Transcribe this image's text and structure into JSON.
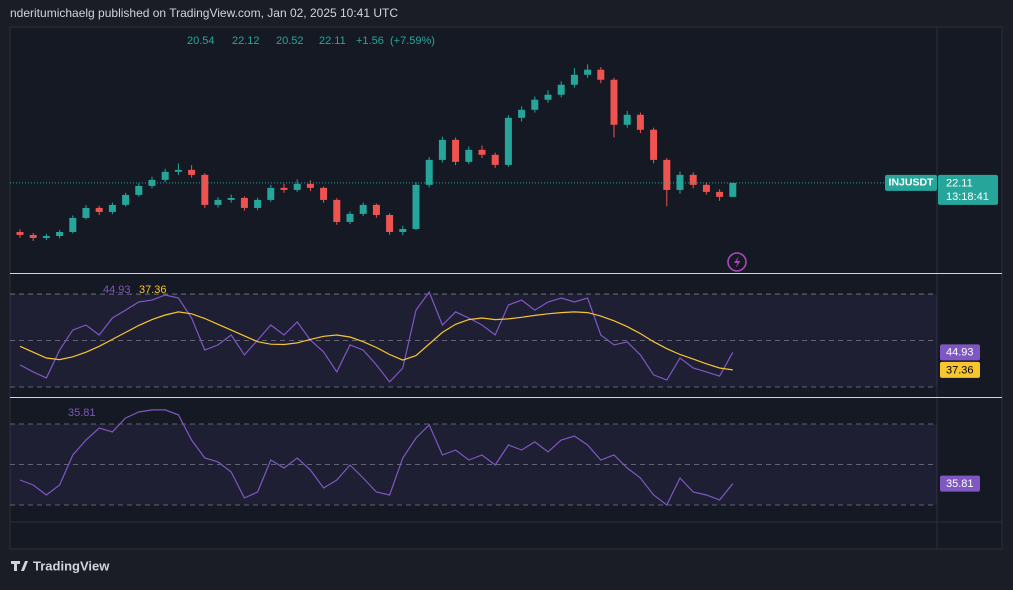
{
  "header": {
    "text": "nderitumichaelg published on TradingView.com, Jan 02, 2025 10:41 UTC"
  },
  "footer": {
    "brand": "TradingView"
  },
  "chart_data": [
    {
      "type": "candlestick",
      "symbol": "INJUSDT",
      "countdown": "13:18:41",
      "change": {
        "value": 1.56,
        "label": "+1.56"
      },
      "change_percent": {
        "value": 7.59,
        "label": "(+7.59%)"
      },
      "up_color": "#26a69a",
      "down_color": "#ef5350",
      "ylim": [
        12,
        39.6
      ],
      "open": [
        16.6,
        16.27,
        15.93,
        16.15,
        16.6,
        18.18,
        19.3,
        18.85,
        19.64,
        20.76,
        21.77,
        22.45,
        23.35,
        23.57,
        23.01,
        19.64,
        20.2,
        20.42,
        19.3,
        20.2,
        21.55,
        21.32,
        22.0,
        21.55,
        20.2,
        17.73,
        18.63,
        19.64,
        18.51,
        16.6,
        16.94,
        21.89,
        24.69,
        26.94,
        24.47,
        25.82,
        25.26,
        24.13,
        29.41,
        30.31,
        31.44,
        32.0,
        33.12,
        34.24,
        34.81,
        33.68,
        28.63,
        29.75,
        28.07,
        24.69,
        21.32,
        23.01,
        21.89,
        21.1,
        20.54
      ],
      "high": [
        16.9,
        16.5,
        16.4,
        16.85,
        18.45,
        19.6,
        19.55,
        19.9,
        21.0,
        22.05,
        22.8,
        23.7,
        24.3,
        24.1,
        23.2,
        20.5,
        20.8,
        20.6,
        20.45,
        21.9,
        22.0,
        22.5,
        22.4,
        21.7,
        20.4,
        18.9,
        19.9,
        19.8,
        18.7,
        17.3,
        22.2,
        25.0,
        27.3,
        27.2,
        26.2,
        26.3,
        25.5,
        29.7,
        30.7,
        31.8,
        32.5,
        33.5,
        35.0,
        35.4,
        35.1,
        33.9,
        30.2,
        30.0,
        28.3,
        24.9,
        23.4,
        23.3,
        22.2,
        21.4,
        22.12
      ],
      "low": [
        15.95,
        15.6,
        15.7,
        15.9,
        16.45,
        18.0,
        18.5,
        18.6,
        19.45,
        20.55,
        21.5,
        22.2,
        23.0,
        22.7,
        19.3,
        19.35,
        19.9,
        19.0,
        19.05,
        20.0,
        21.0,
        21.1,
        21.2,
        19.9,
        17.4,
        17.5,
        18.4,
        18.2,
        16.3,
        16.25,
        16.8,
        21.6,
        24.4,
        24.1,
        24.2,
        24.9,
        23.8,
        23.9,
        29.0,
        30.0,
        31.1,
        31.7,
        32.8,
        33.9,
        33.3,
        27.2,
        28.3,
        27.7,
        24.3,
        19.5,
        20.9,
        21.5,
        20.8,
        20.1,
        20.52
      ],
      "close": [
        16.27,
        15.93,
        16.15,
        16.6,
        18.18,
        19.3,
        18.85,
        19.64,
        20.76,
        21.77,
        22.45,
        23.35,
        23.57,
        23.01,
        19.64,
        20.2,
        20.42,
        19.3,
        20.2,
        21.55,
        21.32,
        22.0,
        21.55,
        20.2,
        17.73,
        18.63,
        19.64,
        18.51,
        16.6,
        16.94,
        21.89,
        24.69,
        26.94,
        24.47,
        25.82,
        25.26,
        24.13,
        29.41,
        30.31,
        31.44,
        32.0,
        33.12,
        34.24,
        34.81,
        33.68,
        28.63,
        29.75,
        28.07,
        24.69,
        21.32,
        23.01,
        21.89,
        21.1,
        20.54,
        22.11
      ]
    },
    {
      "type": "line",
      "ylim": [
        25.7,
        78.2
      ],
      "levels": [
        30,
        50,
        70
      ],
      "series": [
        {
          "color": "#7e57c2",
          "values": [
            39.5,
            36.5,
            33.9,
            45.9,
            54.5,
            56.7,
            52.4,
            59.7,
            63.1,
            66.6,
            67.4,
            69.6,
            68.3,
            59.7,
            45.9,
            48.1,
            52.4,
            43.8,
            50.2,
            56.7,
            52.4,
            58.0,
            50.2,
            45.1,
            36.5,
            48.1,
            45.9,
            39.5,
            32.2,
            38.2,
            63.1,
            70.9,
            56.7,
            62.3,
            59.7,
            56.7,
            52.4,
            65.3,
            67.4,
            63.1,
            66.6,
            68.3,
            66.6,
            68.3,
            52.4,
            48.1,
            49.4,
            43.8,
            35.2,
            33.0,
            42.5,
            38.2,
            36.5,
            34.7,
            44.93
          ]
        },
        {
          "color": "#f7c530",
          "values": [
            47.5,
            45.0,
            42.5,
            41.8,
            43.0,
            45.0,
            47.5,
            50.5,
            53.5,
            56.5,
            59.0,
            61.0,
            62.3,
            61.5,
            59.5,
            57.0,
            54.5,
            52.0,
            49.5,
            48.4,
            48.3,
            49.0,
            50.5,
            51.8,
            52.4,
            51.5,
            49.5,
            47.0,
            44.0,
            41.6,
            43.5,
            48.5,
            53.5,
            57.0,
            59.0,
            59.7,
            59.0,
            59.3,
            60.0,
            60.8,
            61.5,
            62.0,
            62.3,
            62.0,
            60.5,
            58.5,
            56.0,
            53.0,
            49.5,
            46.5,
            44.0,
            42.0,
            40.0,
            38.2,
            37.36
          ]
        }
      ]
    },
    {
      "type": "line",
      "ylim": [
        7.4,
        98.5
      ],
      "levels": [
        20,
        50,
        80
      ],
      "series": [
        {
          "color": "#7e57c2",
          "values": [
            38.5,
            34.8,
            27.4,
            34.8,
            57.0,
            68.1,
            77.0,
            74.1,
            84.4,
            88.9,
            90.4,
            90.4,
            86.7,
            68.1,
            54.8,
            51.9,
            44.4,
            25.2,
            29.6,
            53.3,
            47.4,
            54.8,
            45.9,
            32.6,
            38.5,
            49.6,
            40.0,
            29.6,
            27.4,
            54.8,
            69.6,
            79.3,
            57.0,
            60.7,
            53.3,
            57.0,
            49.6,
            64.4,
            60.7,
            66.7,
            59.3,
            68.1,
            71.1,
            64.4,
            53.3,
            57.0,
            47.4,
            40.0,
            27.4,
            20.0,
            40.0,
            29.6,
            27.4,
            23.7,
            35.81
          ]
        }
      ]
    }
  ]
}
